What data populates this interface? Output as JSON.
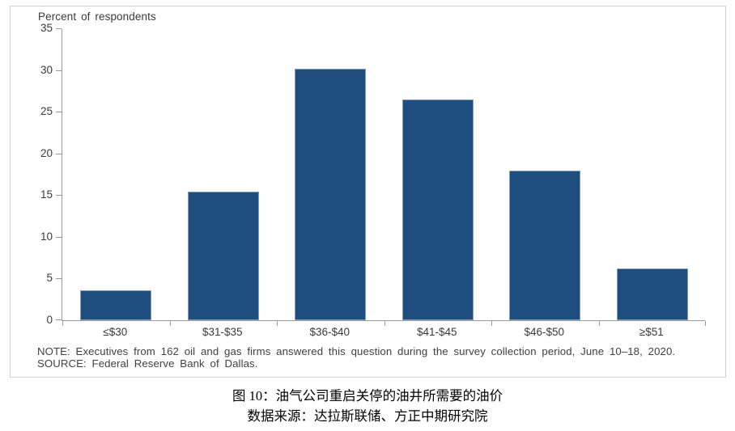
{
  "chart_data": {
    "type": "bar",
    "title": "Percent of respondents",
    "categories": [
      "≤$30",
      "$31-$35",
      "$36-$40",
      "$41-$45",
      "$46-$50",
      "≥$51"
    ],
    "values": [
      3.6,
      15.4,
      30.2,
      26.5,
      17.9,
      6.2
    ],
    "xlabel": "",
    "ylabel": "Percent of respondents",
    "ylim": [
      0,
      35
    ],
    "ytick_step": 5,
    "grid": "off",
    "legend": "none",
    "bar_color": "#1F4E7E",
    "axis_color": "#9a9a9a",
    "tick_label_color": "#3a3a3a"
  },
  "note": {
    "line1": "NOTE: Executives from 162 oil and gas firms answered this question during the survey collection period, June 10–18, 2020.",
    "line2": "SOURCE: Federal Reserve Bank of Dallas."
  },
  "caption": {
    "line1": "图 10：油气公司重启关停的油井所需要的油价",
    "line2": "数据来源：达拉斯联储、方正中期研究院"
  },
  "frame": {
    "border_color": "#d2d2d2",
    "background": "#ffffff"
  }
}
